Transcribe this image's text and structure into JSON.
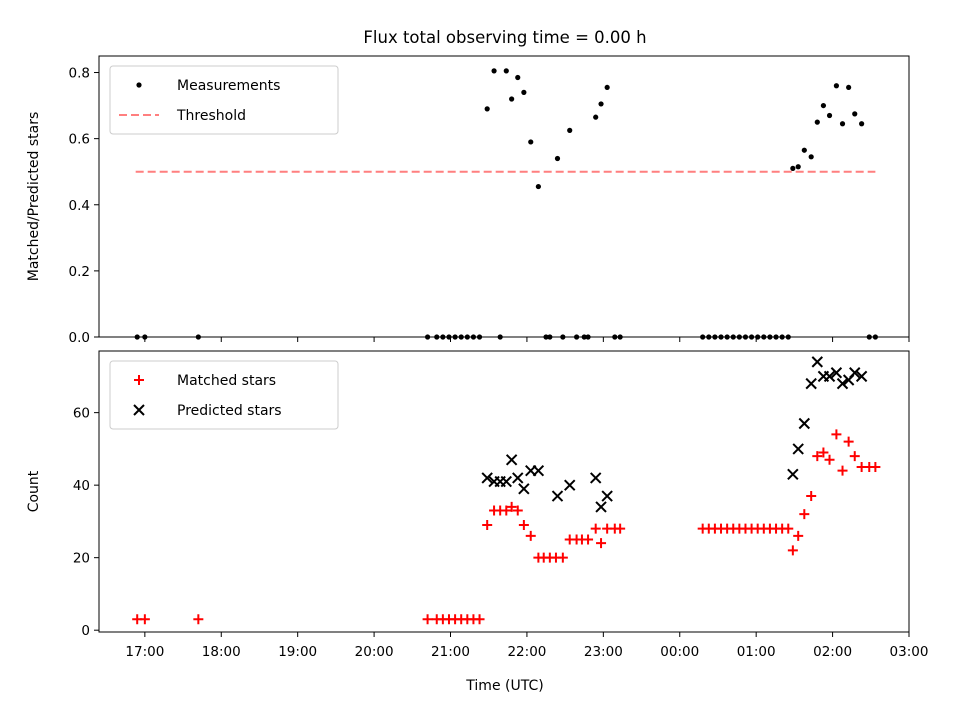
{
  "chart_data": {
    "title": "Flux total observing time = 0.00 h",
    "xlabel": "Time (UTC)",
    "x_unit": "hours (UTC, continuing past midnight as 24+)",
    "x_range": [
      16.4,
      27.0
    ],
    "x_ticks": [
      17,
      18,
      19,
      20,
      21,
      22,
      23,
      24,
      25,
      26,
      27
    ],
    "x_tick_labels": [
      "17:00",
      "18:00",
      "19:00",
      "20:00",
      "21:00",
      "22:00",
      "23:00",
      "00:00",
      "01:00",
      "02:00",
      "03:00"
    ],
    "panels": [
      {
        "type": "scatter",
        "ylabel": "Matched/Predicted stars",
        "ylim": [
          0,
          0.85
        ],
        "y_ticks": [
          0.0,
          0.2,
          0.4,
          0.6,
          0.8
        ],
        "y_tick_labels": [
          "0.0",
          "0.2",
          "0.4",
          "0.6",
          "0.8"
        ],
        "legend": {
          "placement": "upper-left",
          "entries": [
            {
              "label": "Measurements",
              "marker": "dot",
              "color": "#000000"
            },
            {
              "label": "Threshold",
              "marker": "dashed-line",
              "color": "#ff7f7f"
            }
          ]
        },
        "series": [
          {
            "name": "Measurements",
            "marker": "dot",
            "color": "#000000",
            "points": [
              [
                16.9,
                0
              ],
              [
                17.0,
                0
              ],
              [
                17.7,
                0
              ],
              [
                20.7,
                0
              ],
              [
                20.82,
                0
              ],
              [
                20.9,
                0
              ],
              [
                20.98,
                0
              ],
              [
                21.06,
                0
              ],
              [
                21.14,
                0
              ],
              [
                21.22,
                0
              ],
              [
                21.3,
                0
              ],
              [
                21.38,
                0
              ],
              [
                21.48,
                0.69
              ],
              [
                21.57,
                0.805
              ],
              [
                21.65,
                0
              ],
              [
                21.73,
                0.805
              ],
              [
                21.8,
                0.72
              ],
              [
                21.88,
                0.785
              ],
              [
                21.96,
                0.74
              ],
              [
                22.05,
                0.59
              ],
              [
                22.15,
                0.455
              ],
              [
                22.25,
                0
              ],
              [
                22.3,
                0
              ],
              [
                22.4,
                0.54
              ],
              [
                22.47,
                0
              ],
              [
                22.56,
                0.625
              ],
              [
                22.65,
                0
              ],
              [
                22.75,
                0
              ],
              [
                22.8,
                0
              ],
              [
                22.9,
                0.665
              ],
              [
                22.97,
                0.705
              ],
              [
                23.05,
                0.755
              ],
              [
                23.15,
                0
              ],
              [
                23.22,
                0
              ],
              [
                24.3,
                0
              ],
              [
                24.38,
                0
              ],
              [
                24.46,
                0
              ],
              [
                24.54,
                0
              ],
              [
                24.62,
                0
              ],
              [
                24.7,
                0
              ],
              [
                24.78,
                0
              ],
              [
                24.86,
                0
              ],
              [
                24.94,
                0
              ],
              [
                25.02,
                0
              ],
              [
                25.1,
                0
              ],
              [
                25.18,
                0
              ],
              [
                25.26,
                0
              ],
              [
                25.34,
                0
              ],
              [
                25.42,
                0
              ],
              [
                25.48,
                0.51
              ],
              [
                25.55,
                0.515
              ],
              [
                25.63,
                0.565
              ],
              [
                25.72,
                0.545
              ],
              [
                25.8,
                0.65
              ],
              [
                25.88,
                0.7
              ],
              [
                25.96,
                0.67
              ],
              [
                26.05,
                0.76
              ],
              [
                26.13,
                0.645
              ],
              [
                26.21,
                0.755
              ],
              [
                26.29,
                0.675
              ],
              [
                26.38,
                0.645
              ],
              [
                26.48,
                0
              ],
              [
                26.56,
                0
              ]
            ]
          },
          {
            "name": "Threshold",
            "line": "dashed",
            "color": "#ff7f7f",
            "points": [
              [
                16.88,
                0.5
              ],
              [
                26.56,
                0.5
              ]
            ]
          }
        ]
      },
      {
        "type": "scatter",
        "ylabel": "Count",
        "ylim": [
          -0.5,
          77
        ],
        "y_ticks": [
          0,
          20,
          40,
          60
        ],
        "y_tick_labels": [
          "0",
          "20",
          "40",
          "60"
        ],
        "legend": {
          "placement": "upper-left",
          "entries": [
            {
              "label": "Matched stars",
              "marker": "plus",
              "color": "#ff0000"
            },
            {
              "label": "Predicted stars",
              "marker": "cross",
              "color": "#000000"
            }
          ]
        },
        "series": [
          {
            "name": "Matched stars",
            "marker": "plus",
            "color": "#ff0000",
            "points": [
              [
                16.9,
                3
              ],
              [
                17.0,
                3
              ],
              [
                17.7,
                3
              ],
              [
                20.7,
                3
              ],
              [
                20.82,
                3
              ],
              [
                20.9,
                3
              ],
              [
                20.98,
                3
              ],
              [
                21.06,
                3
              ],
              [
                21.14,
                3
              ],
              [
                21.22,
                3
              ],
              [
                21.3,
                3
              ],
              [
                21.38,
                3
              ],
              [
                21.48,
                29
              ],
              [
                21.57,
                33
              ],
              [
                21.65,
                33
              ],
              [
                21.73,
                33
              ],
              [
                21.8,
                34
              ],
              [
                21.88,
                33
              ],
              [
                21.96,
                29
              ],
              [
                22.05,
                26
              ],
              [
                22.15,
                20
              ],
              [
                22.22,
                20
              ],
              [
                22.3,
                20
              ],
              [
                22.38,
                20
              ],
              [
                22.47,
                20
              ],
              [
                22.56,
                25
              ],
              [
                22.65,
                25
              ],
              [
                22.72,
                25
              ],
              [
                22.8,
                25
              ],
              [
                22.9,
                28
              ],
              [
                22.97,
                24
              ],
              [
                23.05,
                28
              ],
              [
                23.15,
                28
              ],
              [
                23.22,
                28
              ],
              [
                24.3,
                28
              ],
              [
                24.38,
                28
              ],
              [
                24.46,
                28
              ],
              [
                24.54,
                28
              ],
              [
                24.62,
                28
              ],
              [
                24.7,
                28
              ],
              [
                24.78,
                28
              ],
              [
                24.86,
                28
              ],
              [
                24.94,
                28
              ],
              [
                25.02,
                28
              ],
              [
                25.1,
                28
              ],
              [
                25.18,
                28
              ],
              [
                25.26,
                28
              ],
              [
                25.34,
                28
              ],
              [
                25.42,
                28
              ],
              [
                25.48,
                22
              ],
              [
                25.55,
                26
              ],
              [
                25.63,
                32
              ],
              [
                25.72,
                37
              ],
              [
                25.8,
                48
              ],
              [
                25.88,
                49
              ],
              [
                25.96,
                47
              ],
              [
                26.05,
                54
              ],
              [
                26.13,
                44
              ],
              [
                26.21,
                52
              ],
              [
                26.29,
                48
              ],
              [
                26.38,
                45
              ],
              [
                26.48,
                45
              ],
              [
                26.56,
                45
              ]
            ]
          },
          {
            "name": "Predicted stars",
            "marker": "cross",
            "color": "#000000",
            "points": [
              [
                21.48,
                42
              ],
              [
                21.57,
                41
              ],
              [
                21.65,
                41
              ],
              [
                21.73,
                41
              ],
              [
                21.8,
                47
              ],
              [
                21.88,
                42
              ],
              [
                21.96,
                39
              ],
              [
                22.05,
                44
              ],
              [
                22.15,
                44
              ],
              [
                22.4,
                37
              ],
              [
                22.56,
                40
              ],
              [
                22.9,
                42
              ],
              [
                22.97,
                34
              ],
              [
                23.05,
                37
              ],
              [
                25.48,
                43
              ],
              [
                25.55,
                50
              ],
              [
                25.63,
                57
              ],
              [
                25.72,
                68
              ],
              [
                25.8,
                74
              ],
              [
                25.88,
                70
              ],
              [
                25.96,
                70
              ],
              [
                26.05,
                71
              ],
              [
                26.13,
                68
              ],
              [
                26.21,
                69
              ],
              [
                26.29,
                71
              ],
              [
                26.38,
                70
              ]
            ]
          }
        ]
      }
    ]
  }
}
